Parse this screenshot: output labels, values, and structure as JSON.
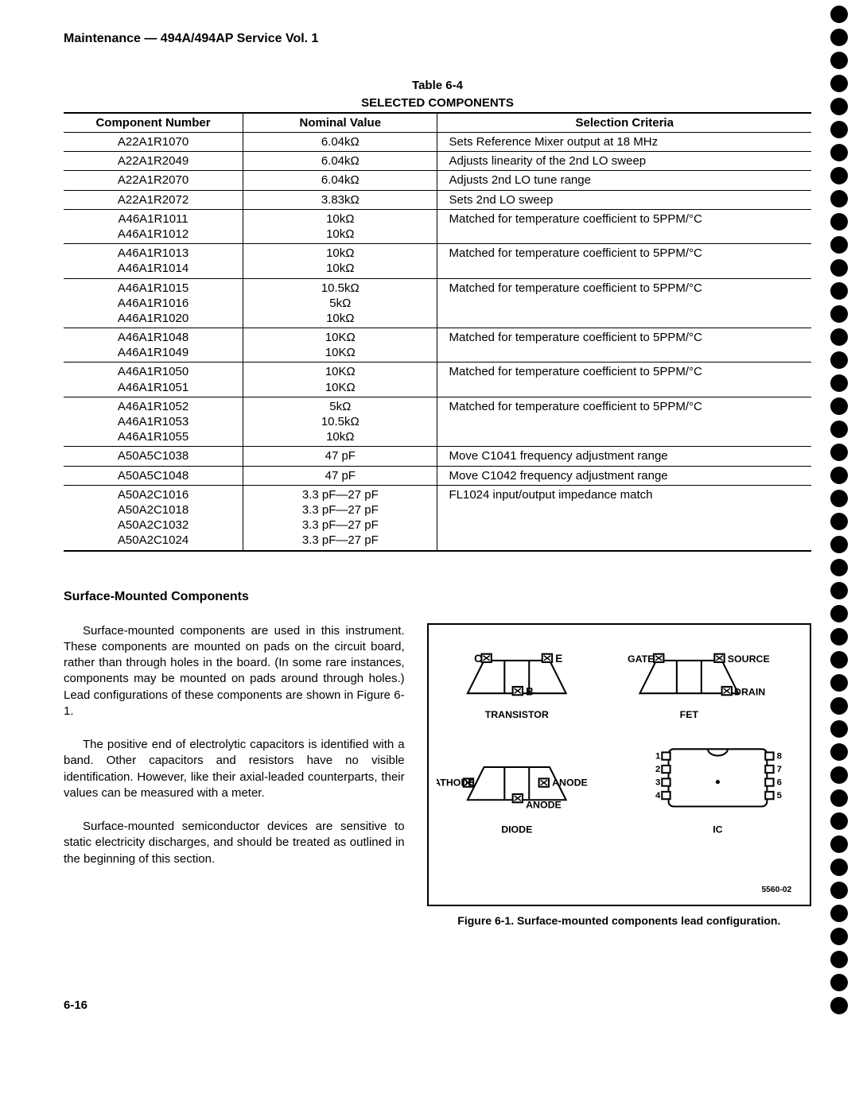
{
  "header": "Maintenance — 494A/494AP Service Vol. 1",
  "table": {
    "caption_line1": "Table 6-4",
    "caption_line2": "SELECTED COMPONENTS",
    "columns": [
      "Component Number",
      "Nominal Value",
      "Selection Criteria"
    ],
    "rows": [
      {
        "comp": [
          "A22A1R1070"
        ],
        "val": [
          "6.04kΩ"
        ],
        "crit": "Sets Reference Mixer output at 18 MHz"
      },
      {
        "comp": [
          "A22A1R2049"
        ],
        "val": [
          "6.04kΩ"
        ],
        "crit": "Adjusts linearity of the 2nd LO sweep"
      },
      {
        "comp": [
          "A22A1R2070"
        ],
        "val": [
          "6.04kΩ"
        ],
        "crit": "Adjusts 2nd LO tune range"
      },
      {
        "comp": [
          "A22A1R2072"
        ],
        "val": [
          "3.83kΩ"
        ],
        "crit": "Sets 2nd LO sweep"
      },
      {
        "comp": [
          "A46A1R1011",
          "A46A1R1012"
        ],
        "val": [
          "10kΩ",
          "10kΩ"
        ],
        "crit": "Matched for temperature coefficient to 5PPM/°C"
      },
      {
        "comp": [
          "A46A1R1013",
          "A46A1R1014"
        ],
        "val": [
          "10kΩ",
          "10kΩ"
        ],
        "crit": "Matched for temperature coefficient to 5PPM/°C"
      },
      {
        "comp": [
          "A46A1R1015",
          "A46A1R1016",
          "A46A1R1020"
        ],
        "val": [
          "10.5kΩ",
          "5kΩ",
          "10kΩ"
        ],
        "crit": "Matched for temperature coefficient to 5PPM/°C"
      },
      {
        "comp": [
          "A46A1R1048",
          "A46A1R1049"
        ],
        "val": [
          "10KΩ",
          "10KΩ"
        ],
        "crit": "Matched for temperature coefficient to 5PPM/°C"
      },
      {
        "comp": [
          "A46A1R1050",
          "A46A1R1051"
        ],
        "val": [
          "10KΩ",
          "10KΩ"
        ],
        "crit": "Matched for temperature coefficient to 5PPM/°C"
      },
      {
        "comp": [
          "A46A1R1052",
          "A46A1R1053",
          "A46A1R1055"
        ],
        "val": [
          "5kΩ",
          "10.5kΩ",
          "10kΩ"
        ],
        "crit": "Matched for temperature coefficient to 5PPM/°C"
      },
      {
        "comp": [
          "A50A5C1038"
        ],
        "val": [
          "47 pF"
        ],
        "crit": "Move C1041 frequency adjustment range"
      },
      {
        "comp": [
          "A50A5C1048"
        ],
        "val": [
          "47 pF"
        ],
        "crit": "Move C1042 frequency adjustment range"
      },
      {
        "comp": [
          "A50A2C1016",
          "A50A2C1018",
          "A50A2C1032",
          "A50A2C1024"
        ],
        "val": [
          "3.3 pF—27 pF",
          "3.3 pF—27 pF",
          "3.3 pF—27 pF",
          "3.3 pF—27 pF"
        ],
        "crit": "FL1024 input/output impedance match"
      }
    ]
  },
  "section": {
    "title": "Surface-Mounted Components",
    "paragraphs": [
      "Surface-mounted components are used in this instrument. These components are mounted on pads on the circuit board, rather than through holes in the board. (In some rare instances, components may be mounted on pads around through holes.) Lead configurations of these components are shown in Figure 6-1.",
      "The positive end of electrolytic capacitors is identified with a band. Other capacitors and resistors have no visible identification. However, like their axial-leaded counterparts, their values can be measured with a meter.",
      "Surface-mounted semiconductor devices are sensitive to static electricity discharges, and should be treated as outlined in the beginning of this section."
    ]
  },
  "figure": {
    "caption": "Figure 6-1. Surface-mounted components lead configuration.",
    "corner_id": "5560-02",
    "labels": {
      "transistor": "TRANSISTOR",
      "fet": "FET",
      "diode": "DIODE",
      "ic": "IC",
      "c": "C",
      "e": "E",
      "b": "B",
      "gate": "GATE",
      "source": "SOURCE",
      "drain": "DRAIN",
      "cathode": "CATHODE",
      "anode": "ANODE",
      "pins": [
        "1",
        "2",
        "3",
        "4",
        "5",
        "6",
        "7",
        "8"
      ]
    },
    "colors": {
      "stroke": "#000000",
      "fill_body": "#ffffff"
    }
  },
  "page_number": "6-16",
  "binding_dot_count": 44
}
